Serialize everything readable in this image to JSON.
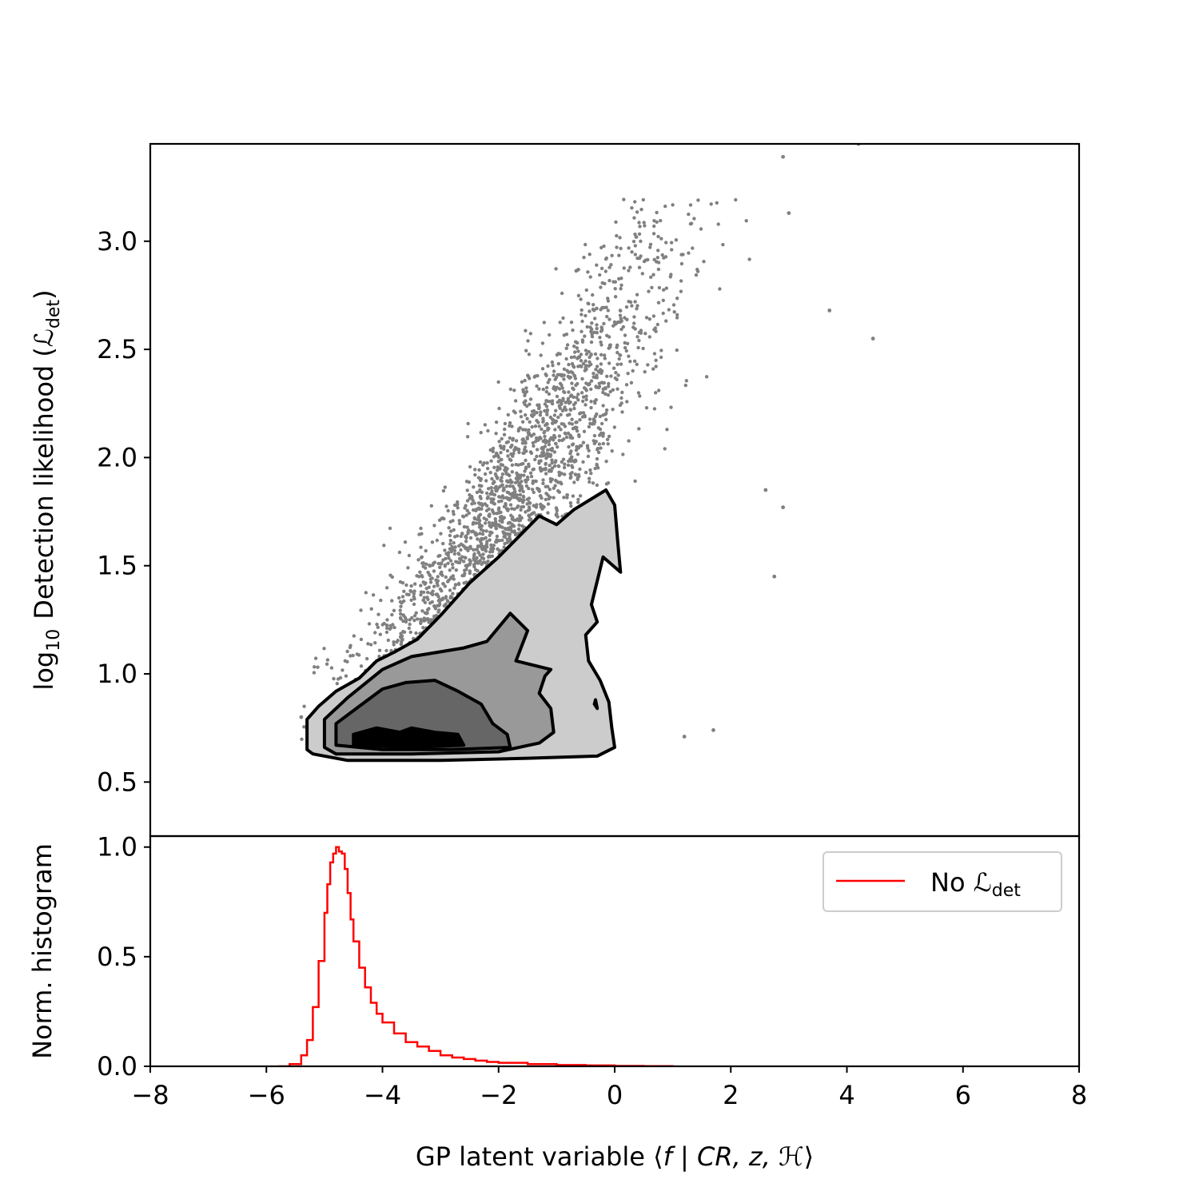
{
  "chart_data": [
    {
      "type": "scatter",
      "panel": "top",
      "ylabel": "log₁₀ Detection likelihood (ℒdet)",
      "ylabel_main": "Detection likelihood (",
      "ylabel_log": "log",
      "ylabel_log_sub": "10",
      "ylabel_L": "ℒ",
      "ylabel_L_sub": "det",
      "ylabel_close": ")",
      "xlim": [
        -8,
        8
      ],
      "ylim": [
        0.25,
        3.45
      ],
      "yticks": [
        0.5,
        1.0,
        1.5,
        2.0,
        2.5,
        3.0
      ],
      "ytick_labels": [
        "0.5",
        "1.0",
        "1.5",
        "2.0",
        "2.5",
        "3.0"
      ],
      "point_color": "#808080",
      "scatter_extent": {
        "x_range": [
          -5.5,
          4.5
        ],
        "y_range": [
          0.62,
          3.45
        ],
        "trend": "log10 L rises roughly linearly with the latent variable, from ~0.7 at x=-5 to ~2.5 at x=3"
      },
      "outliers": [
        {
          "x": 4.2,
          "y": 3.45
        },
        {
          "x": 2.9,
          "y": 3.39
        },
        {
          "x": 3.0,
          "y": 3.13
        },
        {
          "x": 4.45,
          "y": 2.55
        },
        {
          "x": 3.7,
          "y": 2.68
        },
        {
          "x": 2.75,
          "y": 1.45
        },
        {
          "x": 2.9,
          "y": 1.77
        },
        {
          "x": 2.6,
          "y": 1.85
        },
        {
          "x": 1.7,
          "y": 0.74
        },
        {
          "x": 1.2,
          "y": 0.71
        },
        {
          "x": -5.4,
          "y": 0.8
        },
        {
          "x": -5.2,
          "y": 0.72
        }
      ],
      "contours": {
        "levels": 4,
        "fill_colors": [
          "#cccccc",
          "#999999",
          "#666666",
          "#000000"
        ],
        "edge_color": "#000000",
        "shapes": [
          {
            "level": 1,
            "polygon": [
              [
                -5.3,
                0.65
              ],
              [
                -5.3,
                0.79
              ],
              [
                -5.1,
                0.85
              ],
              [
                -4.8,
                0.92
              ],
              [
                -4.4,
                0.98
              ],
              [
                -4.1,
                1.06
              ],
              [
                -3.8,
                1.1
              ],
              [
                -3.4,
                1.16
              ],
              [
                -3.0,
                1.27
              ],
              [
                -2.5,
                1.42
              ],
              [
                -2.0,
                1.54
              ],
              [
                -1.3,
                1.73
              ],
              [
                -1.0,
                1.69
              ],
              [
                -0.7,
                1.76
              ],
              [
                -0.15,
                1.85
              ],
              [
                0.0,
                1.78
              ],
              [
                0.05,
                1.62
              ],
              [
                0.1,
                1.47
              ],
              [
                -0.2,
                1.54
              ],
              [
                -0.4,
                1.32
              ],
              [
                -0.3,
                1.24
              ],
              [
                -0.5,
                1.18
              ],
              [
                -0.45,
                1.06
              ],
              [
                -0.25,
                0.97
              ],
              [
                -0.1,
                0.87
              ],
              [
                -0.05,
                0.75
              ],
              [
                0.0,
                0.66
              ],
              [
                -0.3,
                0.62
              ],
              [
                -1.5,
                0.61
              ],
              [
                -3.0,
                0.6
              ],
              [
                -4.6,
                0.6
              ],
              [
                -5.2,
                0.63
              ]
            ]
          },
          {
            "level": 1,
            "polygon": [
              [
                -0.35,
                0.86
              ],
              [
                -0.3,
                0.84
              ],
              [
                -0.33,
                0.88
              ]
            ]
          },
          {
            "level": 2,
            "polygon": [
              [
                -5.0,
                0.66
              ],
              [
                -5.0,
                0.79
              ],
              [
                -4.6,
                0.89
              ],
              [
                -4.0,
                1.02
              ],
              [
                -3.5,
                1.08
              ],
              [
                -2.6,
                1.12
              ],
              [
                -2.2,
                1.15
              ],
              [
                -1.8,
                1.28
              ],
              [
                -1.5,
                1.2
              ],
              [
                -1.7,
                1.06
              ],
              [
                -1.1,
                1.02
              ],
              [
                -1.2,
                0.99
              ],
              [
                -1.3,
                0.91
              ],
              [
                -1.1,
                0.84
              ],
              [
                -1.05,
                0.73
              ],
              [
                -1.3,
                0.68
              ],
              [
                -2.0,
                0.64
              ],
              [
                -3.5,
                0.63
              ],
              [
                -4.8,
                0.63
              ]
            ]
          },
          {
            "level": 3,
            "polygon": [
              [
                -4.8,
                0.67
              ],
              [
                -4.8,
                0.77
              ],
              [
                -4.4,
                0.85
              ],
              [
                -4.0,
                0.93
              ],
              [
                -3.6,
                0.96
              ],
              [
                -3.1,
                0.97
              ],
              [
                -2.7,
                0.92
              ],
              [
                -2.3,
                0.86
              ],
              [
                -2.1,
                0.77
              ],
              [
                -1.85,
                0.72
              ],
              [
                -1.8,
                0.66
              ],
              [
                -2.8,
                0.65
              ],
              [
                -4.0,
                0.65
              ]
            ]
          },
          {
            "level": 4,
            "polygon": [
              [
                -4.5,
                0.67
              ],
              [
                -4.5,
                0.72
              ],
              [
                -4.1,
                0.75
              ],
              [
                -3.7,
                0.73
              ],
              [
                -3.5,
                0.75
              ],
              [
                -3.1,
                0.73
              ],
              [
                -2.7,
                0.72
              ],
              [
                -2.6,
                0.67
              ],
              [
                -3.5,
                0.66
              ]
            ]
          }
        ]
      }
    },
    {
      "type": "line",
      "panel": "bottom",
      "style": "step",
      "xlabel": "GP latent variable ⟨f | CR, z, ℋ⟩",
      "xlabel_text": "GP latent variable ⟨",
      "xlabel_f": "f",
      "xlabel_bar": " | ",
      "xlabel_args": "CR, z, ℋ",
      "xlabel_close": "⟩",
      "ylabel": "Norm. histogram",
      "xlim": [
        -8,
        8
      ],
      "ylim": [
        0.0,
        1.05
      ],
      "xticks": [
        -8,
        -6,
        -4,
        -2,
        0,
        2,
        4,
        6,
        8
      ],
      "xtick_labels": [
        "−8",
        "−6",
        "−4",
        "−2",
        "0",
        "2",
        "4",
        "6",
        "8"
      ],
      "yticks": [
        0.0,
        0.5,
        1.0
      ],
      "ytick_labels": [
        "0.0",
        "0.5",
        "1.0"
      ],
      "series": [
        {
          "name_text": "No ",
          "name_L": "ℒ",
          "name_L_sub": "det",
          "color": "#ff0000",
          "x": [
            -5.8,
            -5.6,
            -5.4,
            -5.3,
            -5.2,
            -5.1,
            -5.0,
            -4.95,
            -4.9,
            -4.85,
            -4.8,
            -4.75,
            -4.7,
            -4.65,
            -4.6,
            -4.55,
            -4.5,
            -4.4,
            -4.3,
            -4.2,
            -4.1,
            -4.0,
            -3.8,
            -3.6,
            -3.4,
            -3.2,
            -3.0,
            -2.8,
            -2.6,
            -2.4,
            -2.2,
            -2.0,
            -1.5,
            -1.0,
            -0.5,
            0.0,
            0.5,
            1.0
          ],
          "values": [
            0.0,
            0.01,
            0.05,
            0.12,
            0.27,
            0.48,
            0.7,
            0.83,
            0.93,
            0.97,
            1.0,
            0.98,
            0.97,
            0.9,
            0.79,
            0.67,
            0.57,
            0.45,
            0.36,
            0.29,
            0.24,
            0.2,
            0.15,
            0.11,
            0.09,
            0.07,
            0.05,
            0.04,
            0.033,
            0.026,
            0.02,
            0.016,
            0.01,
            0.006,
            0.004,
            0.002,
            0.001,
            0.0
          ]
        }
      ],
      "legend": "top-right"
    }
  ]
}
